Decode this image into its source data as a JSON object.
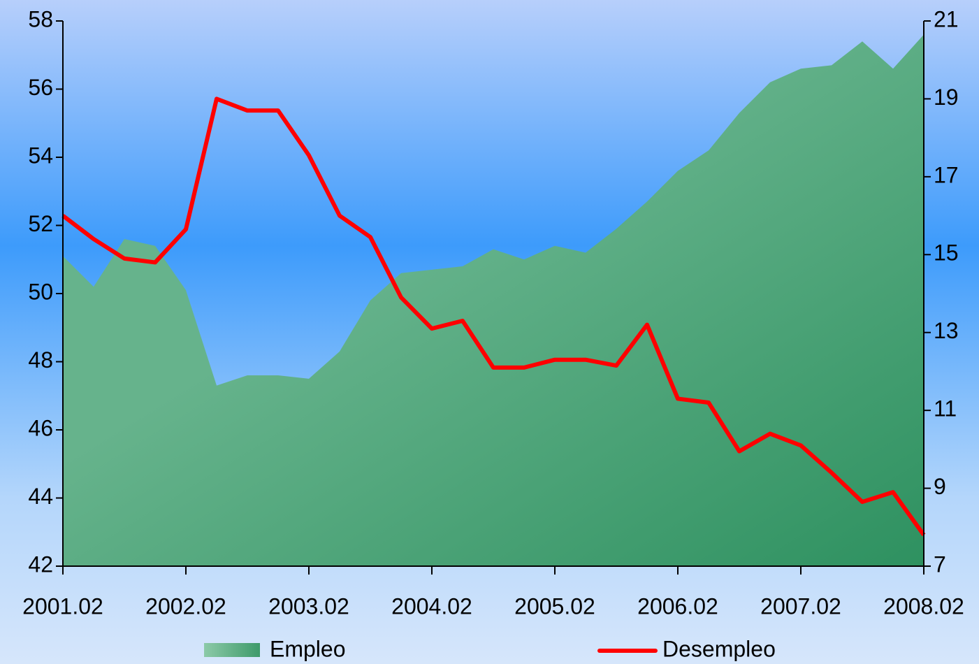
{
  "chart_data": {
    "type": "area-line",
    "categories": [
      "2001.02",
      null,
      null,
      null,
      "2002.02",
      null,
      null,
      null,
      "2003.02",
      null,
      null,
      null,
      "2004.02",
      null,
      null,
      null,
      "2005.02",
      null,
      null,
      null,
      "2006.02",
      null,
      null,
      null,
      "2007.02",
      null,
      null,
      null,
      "2008.02"
    ],
    "series": [
      {
        "name": "Empleo",
        "type": "area",
        "color": "#5aab80",
        "axis": "y",
        "values": [
          51.1,
          50.2,
          51.6,
          51.4,
          50.1,
          47.3,
          47.6,
          47.6,
          47.5,
          48.3,
          49.8,
          50.6,
          50.7,
          50.8,
          51.3,
          51.0,
          51.4,
          51.2,
          51.9,
          52.7,
          53.6,
          54.2,
          55.3,
          56.2,
          56.6,
          56.7,
          57.4,
          56.6,
          57.6
        ]
      },
      {
        "name": "Desempleo",
        "type": "line",
        "color": "#ff0000",
        "axis": "y2",
        "values": [
          16.0,
          15.4,
          14.9,
          14.8,
          15.65,
          19.0,
          18.7,
          18.7,
          17.55,
          16.0,
          15.45,
          13.9,
          13.1,
          13.3,
          12.1,
          12.1,
          12.3,
          12.3,
          12.15,
          13.2,
          11.3,
          11.2,
          9.95,
          10.4,
          10.1,
          9.4,
          8.65,
          8.9,
          7.8
        ]
      }
    ],
    "ylim": [
      42,
      58
    ],
    "yticks": [
      42,
      44,
      46,
      48,
      50,
      52,
      54,
      56,
      58
    ],
    "y2lim": [
      7,
      21
    ],
    "y2ticks": [
      7,
      9,
      11,
      13,
      15,
      17,
      19,
      21
    ]
  }
}
